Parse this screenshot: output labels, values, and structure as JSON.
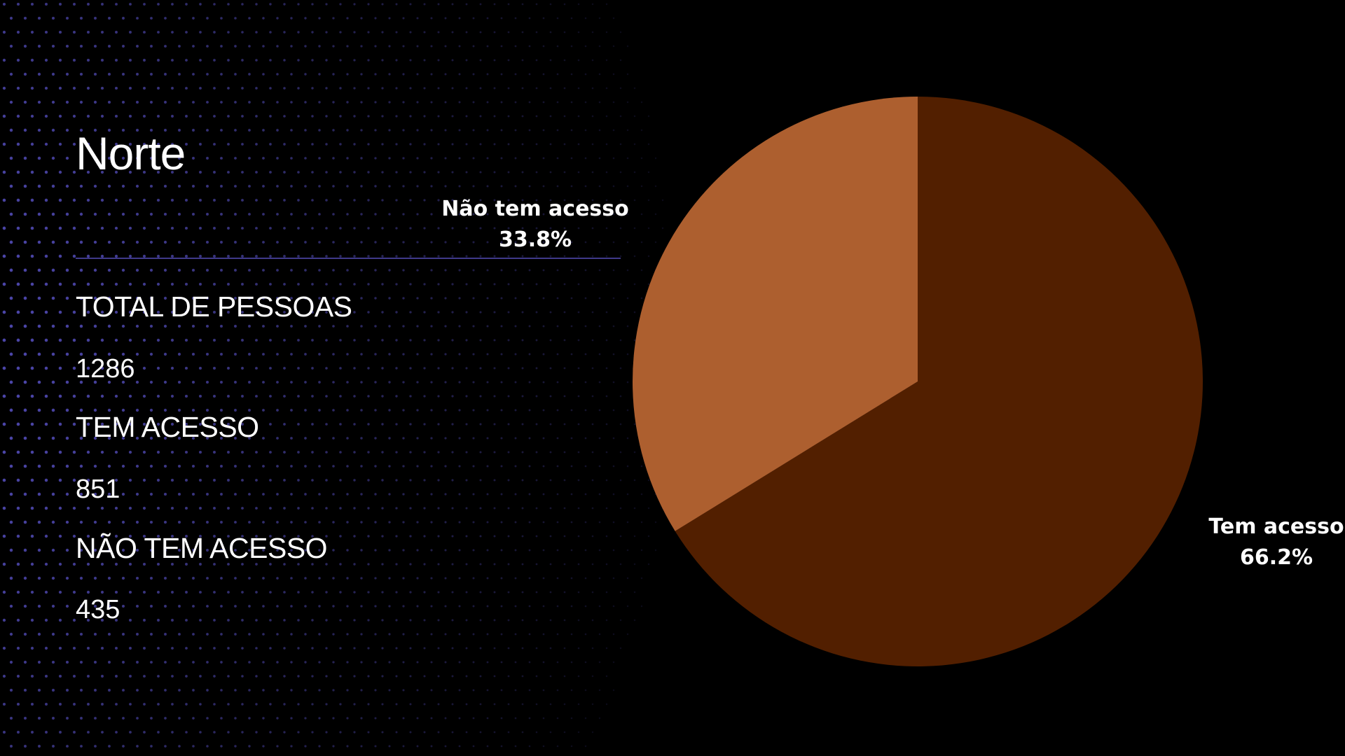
{
  "heading": "Norte",
  "stats": [
    {
      "label": "TOTAL DE PESSOAS",
      "value": "1286"
    },
    {
      "label": "TEM ACESSO",
      "value": "851"
    },
    {
      "label": "NÃO TEM ACESSO",
      "value": "435"
    }
  ],
  "colors": {
    "background": "#000000",
    "dots": "#4b45a8",
    "divider": "#3f3a8a",
    "tem_acesso": "#521f00",
    "nao_tem_acesso": "#ad5f2f"
  },
  "chart_data": {
    "type": "pie",
    "title": "",
    "slices": [
      {
        "name": "Tem acesso",
        "value": 66.2,
        "pct_label": "66.2%",
        "color": "#521f00"
      },
      {
        "name": "Não tem acesso",
        "value": 33.8,
        "pct_label": "33.8%",
        "color": "#ad5f2f"
      }
    ],
    "start": "top",
    "direction": "clockwise",
    "legend": "none"
  }
}
